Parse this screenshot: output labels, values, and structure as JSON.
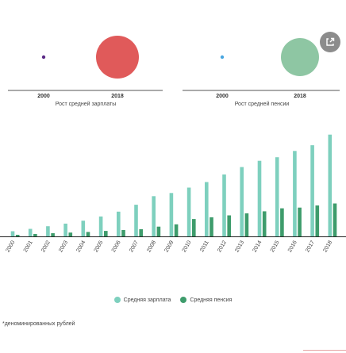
{
  "colors": {
    "salary": "#7ed0be",
    "pension": "#3e9c6c",
    "salary_bubble": "#e05a5a",
    "pension_bubble": "#8ec6a3",
    "small_salary_dot": "#5b2a86",
    "small_pension_dot": "#49a6e0"
  },
  "bubbles": [
    {
      "name": "salary",
      "start_label": "2000",
      "end_label": "2018",
      "caption": "Рост средней зарплаты"
    },
    {
      "name": "pension",
      "start_label": "2000",
      "end_label": "2018",
      "caption": "Рост средней пенсии"
    }
  ],
  "share_icon": "share-icon",
  "chart_data": {
    "type": "bar",
    "categories": [
      "2000",
      "2001",
      "2002",
      "2003",
      "2004",
      "2005",
      "2006",
      "2007",
      "2008",
      "2009",
      "2010",
      "2011",
      "2012",
      "2013",
      "2014",
      "2015",
      "2016",
      "2017",
      "2018"
    ],
    "series": [
      {
        "name": "Средняя зарплата",
        "values": [
          2223,
          3240,
          4360,
          5499,
          6740,
          8555,
          10634,
          13593,
          17290,
          18638,
          20952,
          23369,
          26629,
          29792,
          32495,
          34030,
          36709,
          39167,
          43724
        ]
      },
      {
        "name": "Средняя пенсия",
        "values": [
          694,
          1024,
          1379,
          1637,
          1915,
          2364,
          2726,
          3116,
          4199,
          5191,
          7476,
          8203,
          9041,
          9918,
          10786,
          12080,
          12391,
          13304,
          14163
        ]
      }
    ],
    "ylim": [
      0,
      45000
    ],
    "grid": false,
    "legend": "bottom",
    "xlabel": "",
    "ylabel": ""
  },
  "legend": {
    "salary_label": "Средняя зарплата",
    "pension_label": "Средняя пенсия"
  },
  "footnote": "*деноминированных рублей"
}
